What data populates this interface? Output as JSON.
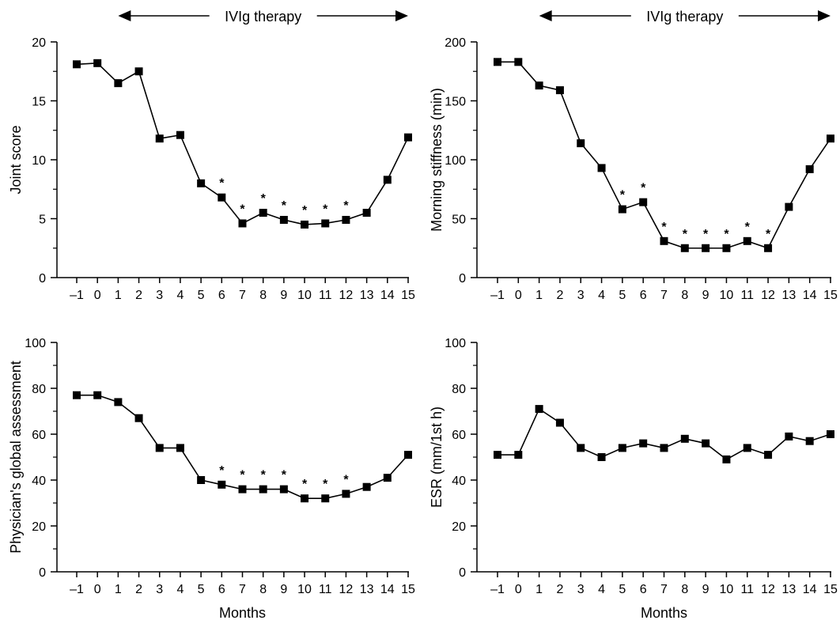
{
  "figure": {
    "therapy_label": "IVIg therapy"
  },
  "chart_data": [
    {
      "type": "line",
      "panel": "top-left",
      "xlabel": "",
      "ylabel": "Joint score",
      "x": [
        -1,
        0,
        1,
        2,
        3,
        4,
        5,
        6,
        7,
        8,
        9,
        10,
        11,
        12,
        13,
        14,
        15
      ],
      "x_tick_labels": [
        "–1",
        "0",
        "1",
        "2",
        "3",
        "4",
        "5",
        "6",
        "7",
        "8",
        "9",
        "10",
        "11",
        "12",
        "13",
        "14",
        "15"
      ],
      "values": [
        18.1,
        18.2,
        16.5,
        17.5,
        11.8,
        12.1,
        8.0,
        6.8,
        4.6,
        5.5,
        4.9,
        4.5,
        4.6,
        4.9,
        5.5,
        8.3,
        11.9
      ],
      "significant_x": [
        6,
        7,
        8,
        9,
        10,
        11,
        12
      ],
      "significance_marker": "*",
      "ylim": [
        0,
        20
      ],
      "y_ticks": [
        0,
        5,
        10,
        15,
        20
      ],
      "therapy_x_range": [
        1,
        15
      ],
      "grid": false
    },
    {
      "type": "line",
      "panel": "top-right",
      "xlabel": "",
      "ylabel": "Morning stiffness (min)",
      "x": [
        -1,
        0,
        1,
        2,
        3,
        4,
        5,
        6,
        7,
        8,
        9,
        10,
        11,
        12,
        13,
        14,
        15
      ],
      "x_tick_labels": [
        "–1",
        "0",
        "1",
        "2",
        "3",
        "4",
        "5",
        "6",
        "7",
        "8",
        "9",
        "10",
        "11",
        "12",
        "13",
        "14",
        "15"
      ],
      "values": [
        183,
        183,
        163,
        159,
        114,
        93,
        58,
        64,
        31,
        25,
        25,
        25,
        31,
        25,
        60,
        92,
        118
      ],
      "significant_x": [
        5,
        6,
        7,
        8,
        9,
        10,
        11,
        12
      ],
      "significance_marker": "*",
      "ylim": [
        0,
        200
      ],
      "y_ticks": [
        0,
        50,
        100,
        150,
        200
      ],
      "therapy_x_range": [
        1,
        15
      ],
      "grid": false
    },
    {
      "type": "line",
      "panel": "bottom-left",
      "xlabel": "Months",
      "ylabel": "Physician's global assessment",
      "x": [
        -1,
        0,
        1,
        2,
        3,
        4,
        5,
        6,
        7,
        8,
        9,
        10,
        11,
        12,
        13,
        14,
        15
      ],
      "x_tick_labels": [
        "–1",
        "0",
        "1",
        "2",
        "3",
        "4",
        "5",
        "6",
        "7",
        "8",
        "9",
        "10",
        "11",
        "12",
        "13",
        "14",
        "15"
      ],
      "values": [
        77,
        77,
        74,
        67,
        54,
        54,
        40,
        38,
        36,
        36,
        36,
        32,
        32,
        34,
        37,
        41,
        51
      ],
      "significant_x": [
        6,
        7,
        8,
        9,
        10,
        11,
        12
      ],
      "significance_marker": "*",
      "ylim": [
        0,
        100
      ],
      "y_ticks": [
        0,
        20,
        40,
        60,
        80,
        100
      ],
      "grid": false
    },
    {
      "type": "line",
      "panel": "bottom-right",
      "xlabel": "Months",
      "ylabel": "ESR (mm/1st h)",
      "x": [
        -1,
        0,
        1,
        2,
        3,
        4,
        5,
        6,
        7,
        8,
        9,
        10,
        11,
        12,
        13,
        14,
        15
      ],
      "x_tick_labels": [
        "–1",
        "0",
        "1",
        "2",
        "3",
        "4",
        "5",
        "6",
        "7",
        "8",
        "9",
        "10",
        "11",
        "12",
        "13",
        "14",
        "15"
      ],
      "values": [
        51,
        51,
        71,
        65,
        54,
        50,
        54,
        56,
        54,
        58,
        56,
        49,
        54,
        51,
        59,
        57,
        60
      ],
      "significant_x": [],
      "significance_marker": "*",
      "ylim": [
        0,
        100
      ],
      "y_ticks": [
        0,
        20,
        40,
        60,
        80,
        100
      ],
      "grid": false
    }
  ]
}
